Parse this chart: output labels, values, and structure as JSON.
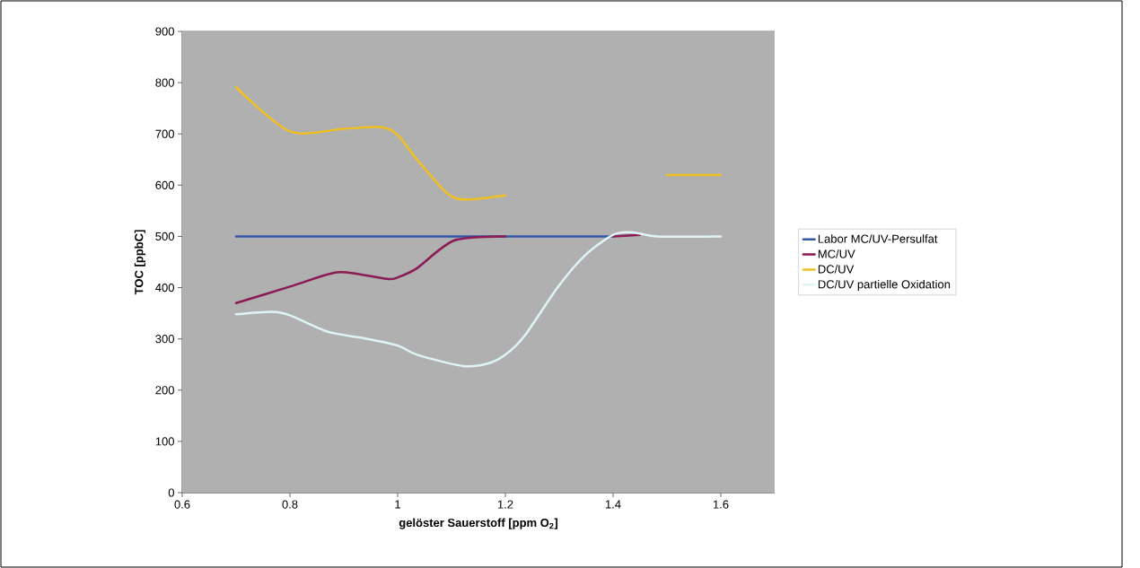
{
  "chart_data": {
    "type": "line",
    "xlabel": "gelöster Sauerstoff [ppm O$_{2}$]",
    "ylabel": "TOC [ppbC]",
    "xlim": [
      0.6,
      1.7
    ],
    "xticks": [
      0.6,
      0.8,
      1,
      1.2,
      1.4,
      1.6
    ],
    "ylim": [
      0,
      900
    ],
    "yticks": [
      0,
      100,
      200,
      300,
      400,
      500,
      600,
      700,
      800,
      900
    ],
    "grid": "y",
    "legend": "right",
    "line_style": "solid",
    "marker": "none",
    "series": [
      {
        "name": "Labor MC/UV-Persulfat",
        "color": "#3355aa",
        "x": [
          0.7,
          1.4
        ],
        "values": [
          500,
          500
        ]
      },
      {
        "name": "MC/UV",
        "color": "#8b1a55",
        "x": [
          0.7,
          0.8,
          0.87,
          0.905,
          0.98,
          1.0,
          1.036,
          1.105,
          1.2,
          1.3,
          1.4,
          1.45
        ],
        "values": [
          370,
          402,
          426,
          430,
          417,
          420,
          438,
          492,
          500,
          null,
          500,
          503
        ]
      },
      {
        "name": "DC/UV",
        "color": "#f0c020",
        "x": [
          0.7,
          0.8,
          0.9,
          0.97,
          1.0,
          1.036,
          1.093,
          1.128,
          1.2,
          1.35,
          1.5,
          1.6
        ],
        "values": [
          791,
          705,
          710,
          713,
          698,
          650,
          583,
          572,
          580,
          null,
          620,
          620
        ]
      },
      {
        "name": "DC/UV partielle Oxidation",
        "color": "#e0f4f8",
        "x": [
          0.7,
          0.767,
          0.8,
          0.87,
          0.934,
          1.0,
          1.036,
          1.122,
          1.168,
          1.2,
          1.235,
          1.298,
          1.35,
          1.402,
          1.436,
          1.482,
          1.6
        ],
        "values": [
          348,
          353,
          346,
          314,
          302,
          287,
          269,
          247,
          252,
          269,
          305,
          402,
          465,
          504,
          508,
          500,
          500
        ]
      }
    ]
  }
}
